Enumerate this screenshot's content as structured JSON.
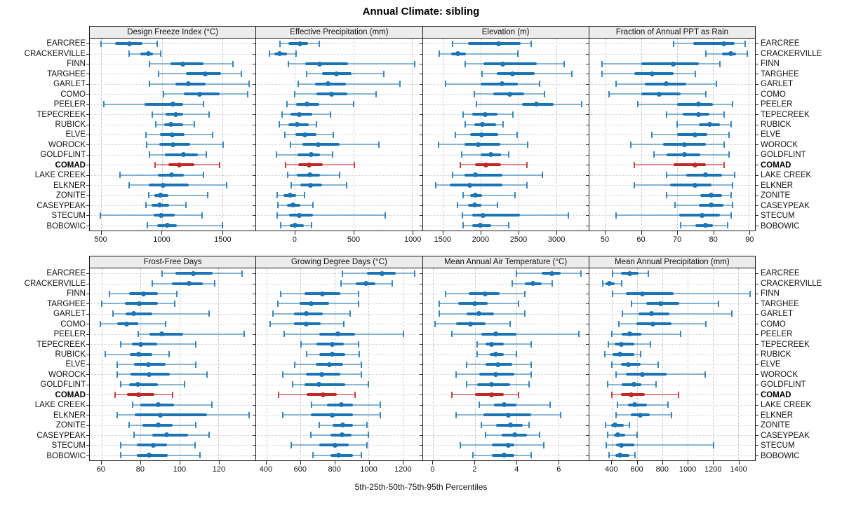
{
  "title": "Annual Climate: sibling",
  "caption": "5th-25th-50th-75th-95th Percentiles",
  "colors": {
    "series_blue": "#1b74b5",
    "highlight_red": "#be2826",
    "header_bg": "#ececec",
    "grid": "#bdbdbd"
  },
  "sites": [
    "EARCREE",
    "CRACKERVILLE",
    "FINN",
    "TARGHEE",
    "GARLET",
    "COMO",
    "PEELER",
    "TEPECREEK",
    "RUBICK",
    "ELVE",
    "WOROCK",
    "GOLDFLINT",
    "COMAD",
    "LAKE CREEK",
    "ELKNER",
    "ZONITE",
    "CASEYPEAK",
    "STECUM",
    "BOBOWIC"
  ],
  "highlight_site": "COMAD",
  "highlight_index": 12,
  "percentiles": [
    "5th",
    "25th",
    "50th",
    "75th",
    "95th"
  ],
  "chart_data": [
    {
      "type": "percentile-range",
      "title": "Design Freeze Index (°C)",
      "ticks": [
        500,
        1000,
        1500
      ],
      "xlim": [
        405,
        1775
      ],
      "values": [
        [
          500,
          615,
          730,
          840,
          960
        ],
        [
          730,
          825,
          890,
          925,
          990
        ],
        [
          900,
          1070,
          1175,
          1345,
          1590
        ],
        [
          975,
          1200,
          1360,
          1490,
          1655
        ],
        [
          900,
          1110,
          1220,
          1360,
          1720
        ],
        [
          1015,
          1180,
          1310,
          1480,
          1710
        ],
        [
          520,
          855,
          1090,
          1175,
          1345
        ],
        [
          920,
          1030,
          1115,
          1175,
          1390
        ],
        [
          950,
          1020,
          1075,
          1175,
          1270
        ],
        [
          870,
          985,
          1085,
          1185,
          1420
        ],
        [
          875,
          980,
          1090,
          1235,
          1505
        ],
        [
          900,
          1025,
          1180,
          1300,
          1365
        ],
        [
          945,
          1055,
          1145,
          1270,
          1475
        ],
        [
          655,
          970,
          1080,
          1185,
          1345
        ],
        [
          730,
          890,
          1010,
          1225,
          1535
        ],
        [
          890,
          940,
          985,
          1055,
          1380
        ],
        [
          870,
          915,
          980,
          1060,
          1200
        ],
        [
          490,
          930,
          995,
          1105,
          1335
        ],
        [
          880,
          960,
          1045,
          1125,
          1500
        ]
      ]
    },
    {
      "type": "percentile-range",
      "title": "Effective Precipitation (mm)",
      "ticks": [
        0,
        500,
        1000
      ],
      "xlim": [
        -330,
        1085
      ],
      "values": [
        [
          -130,
          -55,
          40,
          110,
          205
        ],
        [
          -215,
          -175,
          -130,
          -70,
          10
        ],
        [
          -55,
          85,
          210,
          455,
          1025
        ],
        [
          100,
          230,
          355,
          485,
          760
        ],
        [
          30,
          170,
          285,
          435,
          895
        ],
        [
          -5,
          185,
          310,
          445,
          690
        ],
        [
          -65,
          10,
          100,
          205,
          500
        ],
        [
          -110,
          -40,
          35,
          150,
          305
        ],
        [
          -135,
          -55,
          20,
          120,
          185
        ],
        [
          -85,
          5,
          85,
          185,
          330
        ],
        [
          -40,
          65,
          200,
          380,
          715
        ],
        [
          -155,
          20,
          140,
          215,
          320
        ],
        [
          -80,
          25,
          120,
          235,
          510
        ],
        [
          -60,
          15,
          125,
          215,
          380
        ],
        [
          -30,
          45,
          130,
          230,
          440
        ],
        [
          -150,
          -95,
          -40,
          10,
          80
        ],
        [
          -145,
          -65,
          -20,
          45,
          155
        ],
        [
          -150,
          -50,
          35,
          155,
          770
        ],
        [
          -120,
          -45,
          0,
          75,
          140
        ]
      ]
    },
    {
      "type": "percentile-range",
      "title": "Elevation (m)",
      "ticks": [
        1500,
        2000,
        2500,
        3000
      ],
      "xlim": [
        1230,
        3430
      ],
      "values": [
        [
          1630,
          1830,
          2240,
          2525,
          2670
        ],
        [
          1445,
          1605,
          1700,
          1800,
          2490
        ],
        [
          1790,
          2035,
          2295,
          2740,
          3105
        ],
        [
          2015,
          2210,
          2425,
          2715,
          3210
        ],
        [
          1535,
          2000,
          2285,
          2490,
          2785
        ],
        [
          1915,
          2170,
          2385,
          2580,
          2850
        ],
        [
          1945,
          2550,
          2740,
          2970,
          3335
        ],
        [
          1770,
          1885,
          2055,
          2220,
          2430
        ],
        [
          1790,
          1915,
          2025,
          2200,
          2300
        ],
        [
          1665,
          1860,
          2015,
          2230,
          2480
        ],
        [
          1440,
          1780,
          1965,
          2260,
          2625
        ],
        [
          1745,
          1995,
          2130,
          2270,
          2375
        ],
        [
          1730,
          1925,
          2070,
          2270,
          2615
        ],
        [
          1625,
          1785,
          1925,
          2285,
          2820
        ],
        [
          1400,
          1590,
          1850,
          2285,
          2610
        ],
        [
          1770,
          1860,
          1930,
          2015,
          2455
        ],
        [
          1690,
          1830,
          1915,
          2005,
          2220
        ],
        [
          1760,
          1885,
          2035,
          2520,
          3165
        ],
        [
          1770,
          1890,
          1995,
          2140,
          2375
        ]
      ]
    },
    {
      "type": "percentile-range",
      "title": "Fraction of Annual PPT as Rain",
      "ticks": [
        50,
        60,
        70,
        80,
        90
      ],
      "xlim": [
        45.5,
        91.7
      ],
      "values": [
        [
          69,
          74.5,
          83,
          86,
          89
        ],
        [
          78,
          82.5,
          85,
          86.5,
          89.5
        ],
        [
          49,
          60,
          69,
          76,
          82
        ],
        [
          49,
          58,
          63,
          69,
          75
        ],
        [
          53,
          61,
          67,
          72.5,
          81
        ],
        [
          51,
          60,
          65,
          71,
          78
        ],
        [
          59,
          70,
          76,
          80,
          85.5
        ],
        [
          67,
          71.5,
          76,
          79,
          83
        ],
        [
          70,
          76,
          79,
          82,
          85
        ],
        [
          63,
          70,
          75,
          78.5,
          84.5
        ],
        [
          57,
          66,
          72,
          78,
          83
        ],
        [
          63.5,
          67,
          72,
          76.5,
          84.5
        ],
        [
          58,
          69,
          75,
          78,
          83
        ],
        [
          67,
          72.5,
          78,
          82.5,
          86
        ],
        [
          58,
          68,
          75,
          79.5,
          85.5
        ],
        [
          67,
          76.5,
          79.5,
          82.5,
          85
        ],
        [
          69.5,
          76,
          79.5,
          83,
          85.5
        ],
        [
          53,
          70.5,
          77,
          82,
          85
        ],
        [
          71,
          75,
          78,
          80,
          84
        ]
      ]
    },
    {
      "type": "percentile-range",
      "title": "Frost-Free Days",
      "ticks": [
        60,
        80,
        100,
        120
      ],
      "xlim": [
        54,
        139
      ],
      "values": [
        [
          91,
          98,
          107,
          117,
          132
        ],
        [
          86,
          96,
          105,
          112,
          118
        ],
        [
          64,
          74,
          81.5,
          89,
          98.5
        ],
        [
          60,
          72,
          79.5,
          89,
          97.5
        ],
        [
          66,
          72.5,
          76.5,
          86,
          115
        ],
        [
          59.5,
          68,
          73,
          79,
          93
        ],
        [
          79,
          84.5,
          91,
          102,
          133
        ],
        [
          70,
          75.5,
          80,
          88.5,
          108.5
        ],
        [
          62,
          74.5,
          79,
          86,
          94.5
        ],
        [
          68,
          76.5,
          84,
          93,
          108.5
        ],
        [
          68,
          75,
          84.5,
          95,
          114
        ],
        [
          70,
          74,
          78.5,
          89,
          102.5
        ],
        [
          67,
          73,
          79,
          87,
          96.5
        ],
        [
          76,
          80,
          89,
          97,
          116.5
        ],
        [
          68,
          77,
          90,
          114,
          135.5
        ],
        [
          74,
          81,
          89,
          96.5,
          108.5
        ],
        [
          76.5,
          86,
          93.5,
          104.5,
          115
        ],
        [
          70,
          78,
          86.5,
          93.5,
          108
        ],
        [
          70,
          78,
          84.5,
          94,
          110.5
        ]
      ]
    },
    {
      "type": "percentile-range",
      "title": "Growing Degree Days (°C)",
      "ticks": [
        400,
        600,
        800,
        1000,
        1200
      ],
      "xlim": [
        340,
        1315
      ],
      "values": [
        [
          845,
          990,
          1080,
          1160,
          1270
        ],
        [
          840,
          925,
          985,
          1040,
          1140
        ],
        [
          485,
          625,
          730,
          835,
          940
        ],
        [
          465,
          595,
          665,
          770,
          940
        ],
        [
          440,
          560,
          635,
          730,
          890
        ],
        [
          420,
          560,
          635,
          720,
          855
        ],
        [
          505,
          710,
          820,
          920,
          1205
        ],
        [
          605,
          695,
          785,
          855,
          940
        ],
        [
          635,
          710,
          785,
          865,
          945
        ],
        [
          565,
          690,
          770,
          850,
          960
        ],
        [
          495,
          630,
          725,
          835,
          960
        ],
        [
          555,
          625,
          710,
          865,
          1000
        ],
        [
          470,
          635,
          735,
          815,
          920
        ],
        [
          665,
          755,
          840,
          910,
          1070
        ],
        [
          495,
          660,
          785,
          910,
          1070
        ],
        [
          710,
          790,
          850,
          910,
          990
        ],
        [
          660,
          775,
          845,
          900,
          1000
        ],
        [
          545,
          710,
          805,
          885,
          990
        ],
        [
          675,
          775,
          825,
          910,
          960
        ]
      ]
    },
    {
      "type": "percentile-range",
      "title": "Mean Annual Air Temperature (°C)",
      "ticks": [
        0,
        2,
        4,
        6
      ],
      "xlim": [
        -0.5,
        7.45
      ],
      "values": [
        [
          4.0,
          5.2,
          5.7,
          6.1,
          7.1
        ],
        [
          3.8,
          4.4,
          4.8,
          5.2,
          5.7
        ],
        [
          0.6,
          1.7,
          2.5,
          3.2,
          4.4
        ],
        [
          0.3,
          1.2,
          2.0,
          2.6,
          4.1
        ],
        [
          0.3,
          1.6,
          2.2,
          2.9,
          4.4
        ],
        [
          0.1,
          1.1,
          1.8,
          2.5,
          3.7
        ],
        [
          0.9,
          2.3,
          3.0,
          4.0,
          7.0
        ],
        [
          2.1,
          2.5,
          2.8,
          3.4,
          4.7
        ],
        [
          2.1,
          2.7,
          3.0,
          3.4,
          4.0
        ],
        [
          1.6,
          2.5,
          3.1,
          3.8,
          4.7
        ],
        [
          1.1,
          2.2,
          3.0,
          3.9,
          4.7
        ],
        [
          1.6,
          2.1,
          2.8,
          3.7,
          4.6
        ],
        [
          0.9,
          2.0,
          2.8,
          3.4,
          4.1
        ],
        [
          2.2,
          2.9,
          3.4,
          4.0,
          5.6
        ],
        [
          1.1,
          2.4,
          3.6,
          4.7,
          6.1
        ],
        [
          2.3,
          3.0,
          3.7,
          4.3,
          4.6
        ],
        [
          2.5,
          3.3,
          3.9,
          4.5,
          5.1
        ],
        [
          1.3,
          2.8,
          3.6,
          3.9,
          5.3
        ],
        [
          1.9,
          2.8,
          3.4,
          3.9,
          4.7
        ]
      ]
    },
    {
      "type": "percentile-range",
      "title": "Mean Annual Precipitation (mm)",
      "ticks": [
        400,
        600,
        800,
        1000,
        1200,
        1400
      ],
      "xlim": [
        220,
        1535
      ],
      "values": [
        [
          405,
          470,
          540,
          610,
          690
        ],
        [
          325,
          350,
          380,
          420,
          480
        ],
        [
          405,
          510,
          640,
          890,
          1495
        ],
        [
          555,
          675,
          785,
          935,
          1245
        ],
        [
          485,
          610,
          715,
          855,
          1350
        ],
        [
          455,
          595,
          725,
          870,
          1145
        ],
        [
          400,
          480,
          540,
          635,
          945
        ],
        [
          370,
          420,
          475,
          575,
          705
        ],
        [
          345,
          405,
          465,
          575,
          625
        ],
        [
          400,
          470,
          530,
          625,
          765
        ],
        [
          435,
          510,
          640,
          835,
          1140
        ],
        [
          365,
          480,
          575,
          635,
          750
        ],
        [
          400,
          470,
          550,
          660,
          930
        ],
        [
          445,
          530,
          580,
          680,
          845
        ],
        [
          435,
          550,
          625,
          700,
          870
        ],
        [
          350,
          395,
          425,
          495,
          540
        ],
        [
          365,
          415,
          445,
          505,
          600
        ],
        [
          355,
          435,
          475,
          575,
          1205
        ],
        [
          375,
          425,
          465,
          540,
          585
        ]
      ]
    }
  ]
}
